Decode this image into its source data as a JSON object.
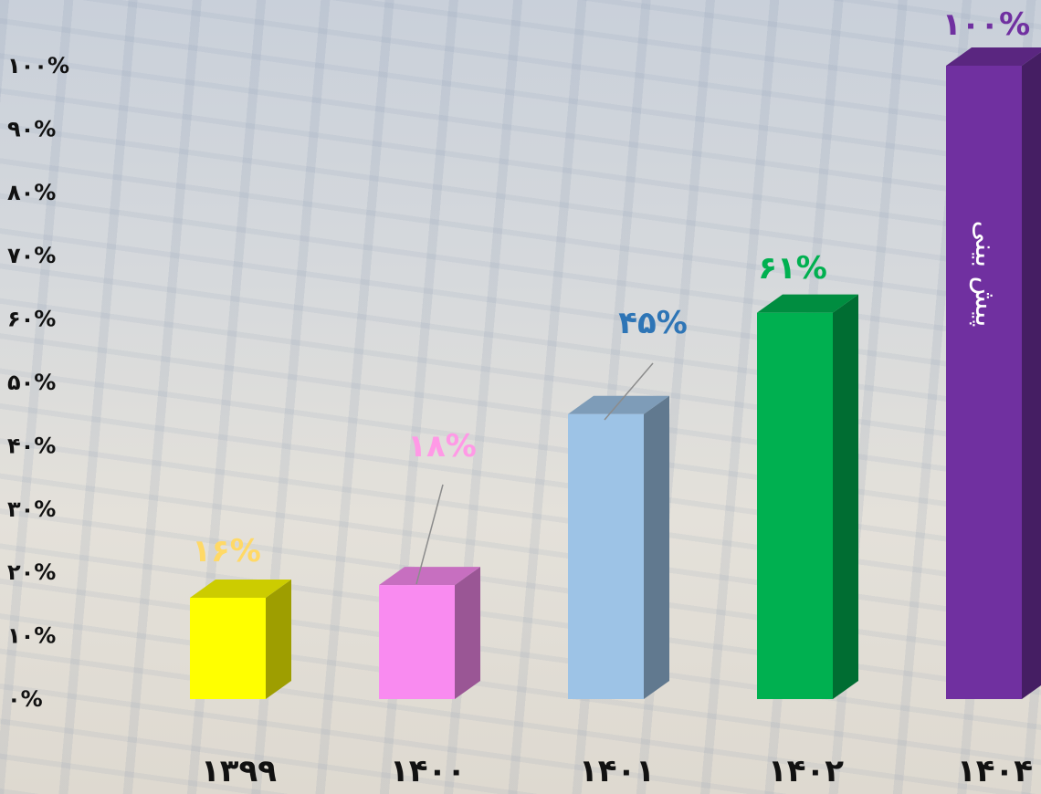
{
  "chart_data": {
    "type": "bar",
    "categories": [
      "۱۳۹۹",
      "۱۴۰۰",
      "۱۴۰۱",
      "۱۴۰۲",
      "۱۴۰۴"
    ],
    "values": [
      16,
      18,
      45,
      61,
      100
    ],
    "data_labels": [
      "۱۶%",
      "۱۸%",
      "۴۵%",
      "۶۱%",
      "۱۰۰%"
    ],
    "bar_colors": [
      "#ffff00",
      "#f98bf0",
      "#9dc3e6",
      "#00b050",
      "#7030a0"
    ],
    "label_colors": [
      "#ffd966",
      "#ff99e6",
      "#2e75b6",
      "#00b050",
      "#7030a0"
    ],
    "bar_annotations": [
      "",
      "",
      "",
      "",
      "پیش بینی"
    ],
    "y_ticks": [
      "۰%",
      "۱۰%",
      "۲۰%",
      "۳۰%",
      "۴۰%",
      "۵۰%",
      "۶۰%",
      "۷۰%",
      "۸۰%",
      "۹۰%",
      "۱۰۰%"
    ],
    "ylim": [
      0,
      100
    ],
    "grid": false,
    "legend": "none",
    "style": "3d-column"
  }
}
